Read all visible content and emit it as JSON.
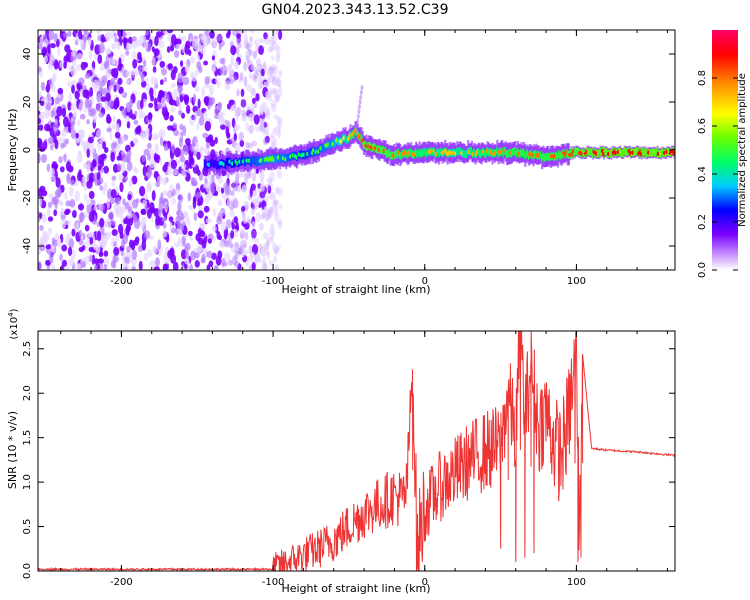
{
  "figure": {
    "title": "GN04.2023.343.13.52.C39"
  },
  "chart_data": [
    {
      "type": "heatmap",
      "title": "GN04.2023.343.13.52.C39",
      "xlabel": "Height of straight line (km)",
      "ylabel": "Frequency (Hz)",
      "xlim": [
        -255,
        165
      ],
      "ylim": [
        -50,
        50
      ],
      "xticks": [
        -200,
        -100,
        0,
        100
      ],
      "yticks": [
        -40,
        -20,
        0,
        20,
        40
      ],
      "colorbar": {
        "label": "Normalized spectral amplitude",
        "range": [
          0.0,
          1.0
        ],
        "ticks": [
          0.0,
          0.2,
          0.4,
          0.6,
          0.8
        ],
        "colormap": [
          "#ffffff",
          "#cc99ff",
          "#7a00ff",
          "#0000ff",
          "#00ccff",
          "#00ff66",
          "#66ff00",
          "#ffff00",
          "#ff8800",
          "#ff0000",
          "#ff0066"
        ]
      },
      "description_points": {
        "noise_region_x": [
          -255,
          -105
        ],
        "ridge_frequency_hz": [
          [
            -140,
            -6
          ],
          [
            -120,
            -5
          ],
          [
            -100,
            -4
          ],
          [
            -90,
            -3
          ],
          [
            -80,
            -2
          ],
          [
            -70,
            0
          ],
          [
            -60,
            3
          ],
          [
            -50,
            5
          ],
          [
            -45,
            8
          ],
          [
            -40,
            2
          ],
          [
            -30,
            0
          ],
          [
            -20,
            -2
          ],
          [
            0,
            -1
          ],
          [
            20,
            -1
          ],
          [
            40,
            -1
          ],
          [
            60,
            -1
          ],
          [
            80,
            -3
          ],
          [
            90,
            -2
          ],
          [
            100,
            -1
          ],
          [
            120,
            -1
          ],
          [
            140,
            -1
          ],
          [
            165,
            -1
          ]
        ],
        "ridge_amplitude": [
          [
            -140,
            0.35
          ],
          [
            -120,
            0.45
          ],
          [
            -100,
            0.55
          ],
          [
            -80,
            0.45
          ],
          [
            -60,
            0.55
          ],
          [
            -40,
            0.85
          ],
          [
            -20,
            0.8
          ],
          [
            0,
            0.75
          ],
          [
            20,
            0.7
          ],
          [
            40,
            0.75
          ],
          [
            60,
            0.8
          ],
          [
            80,
            0.8
          ],
          [
            100,
            0.85
          ],
          [
            120,
            0.9
          ],
          [
            140,
            0.9
          ],
          [
            165,
            0.9
          ]
        ]
      }
    },
    {
      "type": "line",
      "xlabel": "Height of straight line (km)",
      "ylabel": "SNR (10 * v/v)",
      "yunit": "(x10",
      "yunit_exp": "4",
      "yunit_close": ")",
      "xlim": [
        -255,
        165
      ],
      "ylim": [
        0,
        2.7
      ],
      "xticks": [
        -200,
        -100,
        0,
        100
      ],
      "yticks": [
        0.0,
        0.5,
        1.0,
        1.5,
        2.0,
        2.5
      ],
      "ytick_labels": [
        "0.0",
        "0.5",
        "1.0",
        "1.5",
        "2.0",
        "2.5"
      ],
      "color": "#ee3333",
      "series": [
        {
          "x": [
            -255,
            -200,
            -150,
            -120,
            -100,
            -90,
            -80,
            -70,
            -60,
            -50,
            -40,
            -30,
            -20,
            -15,
            -12,
            -8,
            -5,
            -2,
            0,
            10,
            20,
            30,
            40,
            50,
            55,
            60,
            63,
            66,
            70,
            75,
            80,
            85,
            90,
            95,
            100,
            102,
            104,
            110,
            120,
            140,
            165
          ],
          "values": [
            0.01,
            0.01,
            0.01,
            0.02,
            0.04,
            0.1,
            0.18,
            0.25,
            0.35,
            0.5,
            0.65,
            0.75,
            0.85,
            0.8,
            0.9,
            2.3,
            0.2,
            0.55,
            0.7,
            0.95,
            1.1,
            1.25,
            1.35,
            1.4,
            2.0,
            1.5,
            2.75,
            1.7,
            2.35,
            1.6,
            1.8,
            1.45,
            1.3,
            1.75,
            2.4,
            0.3,
            2.45,
            1.38,
            1.36,
            1.34,
            1.3
          ]
        }
      ]
    }
  ]
}
